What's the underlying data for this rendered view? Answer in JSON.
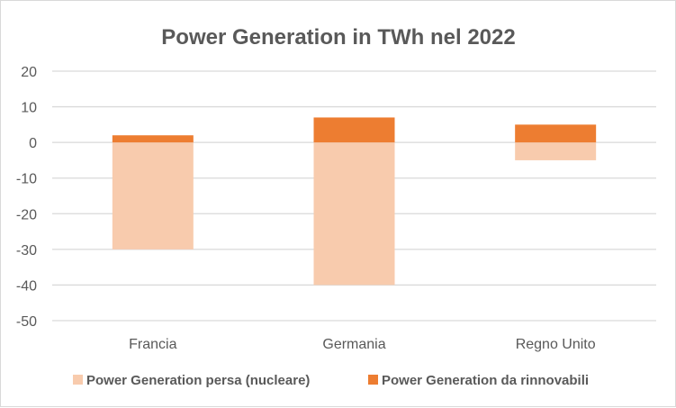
{
  "chart_data": {
    "type": "bar",
    "stacked": true,
    "title": "Power Generation in TWh nel 2022",
    "xlabel": "",
    "ylabel": "",
    "categories": [
      "Francia",
      "Germania",
      "Regno Unito"
    ],
    "series": [
      {
        "name": "Power Generation persa (nucleare)",
        "values": [
          -30,
          -40,
          -5
        ],
        "color": "#F8CBAD"
      },
      {
        "name": "Power Generation da rinnovabili",
        "values": [
          2,
          7,
          5
        ],
        "color": "#ED7D31"
      }
    ],
    "ylim": [
      -50,
      20
    ],
    "yticks": [
      20,
      10,
      0,
      -10,
      -20,
      -30,
      -40,
      -50
    ],
    "grid": true,
    "legend": "bottom"
  }
}
